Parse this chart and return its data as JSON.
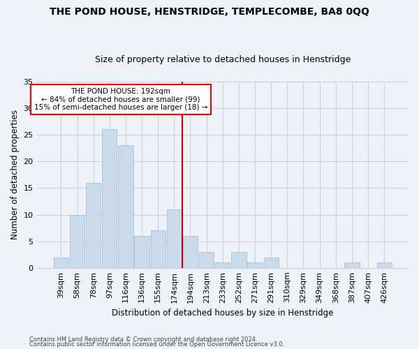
{
  "title": "THE POND HOUSE, HENSTRIDGE, TEMPLECOMBE, BA8 0QQ",
  "subtitle": "Size of property relative to detached houses in Henstridge",
  "xlabel": "Distribution of detached houses by size in Henstridge",
  "ylabel": "Number of detached properties",
  "footer1": "Contains HM Land Registry data © Crown copyright and database right 2024.",
  "footer2": "Contains public sector information licensed under the Open Government Licence v3.0.",
  "bar_labels": [
    "39sqm",
    "58sqm",
    "78sqm",
    "97sqm",
    "116sqm",
    "136sqm",
    "155sqm",
    "174sqm",
    "194sqm",
    "213sqm",
    "233sqm",
    "252sqm",
    "271sqm",
    "291sqm",
    "310sqm",
    "329sqm",
    "349sqm",
    "368sqm",
    "387sqm",
    "407sqm",
    "426sqm"
  ],
  "bar_values": [
    2,
    10,
    16,
    26,
    23,
    6,
    7,
    11,
    6,
    3,
    1,
    3,
    1,
    2,
    0,
    0,
    0,
    0,
    1,
    0,
    1
  ],
  "bar_color": "#c9daea",
  "bar_edgecolor": "#a8c0d4",
  "annotation_line_label": "THE POND HOUSE: 192sqm",
  "annotation_text1": "← 84% of detached houses are smaller (99)",
  "annotation_text2": "15% of semi-detached houses are larger (18) →",
  "annotation_box_color": "white",
  "annotation_box_edgecolor": "red",
  "vline_color": "#cc0000",
  "ylim": [
    0,
    35
  ],
  "yticks": [
    0,
    5,
    10,
    15,
    20,
    25,
    30,
    35
  ],
  "grid_color": "#c8cfd8",
  "background_color": "#eef2f7",
  "title_fontsize": 10,
  "subtitle_fontsize": 9,
  "ylabel_fontsize": 8.5,
  "xlabel_fontsize": 8.5,
  "tick_fontsize": 8,
  "annotation_fontsize": 7.5,
  "footer_fontsize": 6
}
